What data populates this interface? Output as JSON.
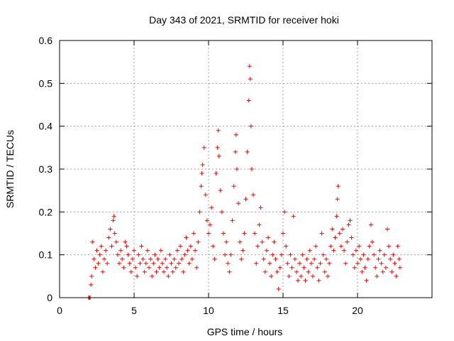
{
  "chart_data": {
    "type": "scatter",
    "title": "Day 343 of 2021, SRMTID for receiver hoki",
    "xlabel": "GPS time / hours",
    "ylabel": "SRMTID / TECUs",
    "xlim": [
      0,
      25
    ],
    "ylim": [
      0,
      0.6
    ],
    "xticks": [
      "0",
      "5",
      "10",
      "15",
      "20"
    ],
    "yticks": [
      "0",
      "0.1",
      "0.2",
      "0.3",
      "0.4",
      "0.5",
      "0.6"
    ],
    "grid": true,
    "marker": "+",
    "color": "#ff0000",
    "series": [
      {
        "name": "SRMTID",
        "points": [
          [
            1.95,
            0.0
          ],
          [
            2.0,
            0.0
          ],
          [
            2.05,
            0.0
          ],
          [
            2.1,
            0.03
          ],
          [
            2.15,
            0.05
          ],
          [
            2.2,
            0.13
          ],
          [
            2.3,
            0.09
          ],
          [
            2.4,
            0.07
          ],
          [
            2.5,
            0.11
          ],
          [
            2.6,
            0.08
          ],
          [
            2.7,
            0.1
          ],
          [
            2.8,
            0.12
          ],
          [
            2.9,
            0.06
          ],
          [
            3.0,
            0.09
          ],
          [
            3.1,
            0.11
          ],
          [
            3.2,
            0.08
          ],
          [
            3.3,
            0.14
          ],
          [
            3.4,
            0.16
          ],
          [
            3.5,
            0.12
          ],
          [
            3.6,
            0.18
          ],
          [
            3.65,
            0.19
          ],
          [
            3.7,
            0.15
          ],
          [
            3.8,
            0.13
          ],
          [
            3.9,
            0.1
          ],
          [
            4.0,
            0.08
          ],
          [
            4.1,
            0.11
          ],
          [
            4.2,
            0.09
          ],
          [
            4.3,
            0.07
          ],
          [
            4.4,
            0.13
          ],
          [
            4.5,
            0.12
          ],
          [
            4.6,
            0.1
          ],
          [
            4.7,
            0.08
          ],
          [
            4.8,
            0.06
          ],
          [
            4.9,
            0.09
          ],
          [
            5.0,
            0.11
          ],
          [
            5.1,
            0.07
          ],
          [
            5.2,
            0.05
          ],
          [
            5.3,
            0.1
          ],
          [
            5.4,
            0.08
          ],
          [
            5.5,
            0.12
          ],
          [
            5.6,
            0.09
          ],
          [
            5.7,
            0.06
          ],
          [
            5.8,
            0.08
          ],
          [
            5.9,
            0.11
          ],
          [
            6.0,
            0.07
          ],
          [
            6.1,
            0.09
          ],
          [
            6.2,
            0.05
          ],
          [
            6.3,
            0.08
          ],
          [
            6.4,
            0.1
          ],
          [
            6.5,
            0.06
          ],
          [
            6.6,
            0.09
          ],
          [
            6.7,
            0.07
          ],
          [
            6.8,
            0.11
          ],
          [
            6.9,
            0.08
          ],
          [
            7.0,
            0.06
          ],
          [
            7.1,
            0.09
          ],
          [
            7.2,
            0.07
          ],
          [
            7.3,
            0.05
          ],
          [
            7.4,
            0.1
          ],
          [
            7.5,
            0.08
          ],
          [
            7.6,
            0.06
          ],
          [
            7.7,
            0.09
          ],
          [
            7.8,
            0.07
          ],
          [
            7.9,
            0.11
          ],
          [
            8.0,
            0.08
          ],
          [
            8.1,
            0.12
          ],
          [
            8.2,
            0.09
          ],
          [
            8.3,
            0.06
          ],
          [
            8.4,
            0.1
          ],
          [
            8.5,
            0.14
          ],
          [
            8.6,
            0.11
          ],
          [
            8.7,
            0.08
          ],
          [
            8.8,
            0.12
          ],
          [
            8.9,
            0.09
          ],
          [
            9.0,
            0.15
          ],
          [
            9.1,
            0.11
          ],
          [
            9.2,
            0.07
          ],
          [
            9.3,
            0.13
          ],
          [
            9.4,
            0.2
          ],
          [
            9.5,
            0.26
          ],
          [
            9.55,
            0.29
          ],
          [
            9.6,
            0.31
          ],
          [
            9.7,
            0.35
          ],
          [
            9.8,
            0.24
          ],
          [
            9.9,
            0.18
          ],
          [
            10.0,
            0.15
          ],
          [
            10.1,
            0.17
          ],
          [
            10.2,
            0.21
          ],
          [
            10.3,
            0.12
          ],
          [
            10.4,
            0.09
          ],
          [
            10.5,
            0.29
          ],
          [
            10.6,
            0.35
          ],
          [
            10.65,
            0.39
          ],
          [
            10.7,
            0.33
          ],
          [
            10.8,
            0.25
          ],
          [
            10.9,
            0.2
          ],
          [
            11.0,
            0.15
          ],
          [
            11.1,
            0.1
          ],
          [
            11.2,
            0.13
          ],
          [
            11.3,
            0.08
          ],
          [
            11.4,
            0.06
          ],
          [
            11.5,
            0.1
          ],
          [
            11.6,
            0.18
          ],
          [
            11.7,
            0.26
          ],
          [
            11.8,
            0.34
          ],
          [
            11.85,
            0.38
          ],
          [
            11.9,
            0.3
          ],
          [
            12.0,
            0.22
          ],
          [
            12.1,
            0.13
          ],
          [
            12.2,
            0.09
          ],
          [
            12.3,
            0.11
          ],
          [
            12.4,
            0.15
          ],
          [
            12.5,
            0.23
          ],
          [
            12.6,
            0.34
          ],
          [
            12.7,
            0.46
          ],
          [
            12.75,
            0.54
          ],
          [
            12.8,
            0.51
          ],
          [
            12.85,
            0.4
          ],
          [
            12.9,
            0.3
          ],
          [
            13.0,
            0.24
          ],
          [
            13.1,
            0.15
          ],
          [
            13.2,
            0.08
          ],
          [
            13.3,
            0.12
          ],
          [
            13.4,
            0.17
          ],
          [
            13.5,
            0.21
          ],
          [
            13.6,
            0.13
          ],
          [
            13.7,
            0.09
          ],
          [
            13.8,
            0.06
          ],
          [
            13.9,
            0.11
          ],
          [
            14.0,
            0.14
          ],
          [
            14.1,
            0.08
          ],
          [
            14.2,
            0.05
          ],
          [
            14.3,
            0.1
          ],
          [
            14.4,
            0.13
          ],
          [
            14.5,
            0.09
          ],
          [
            14.6,
            0.06
          ],
          [
            14.7,
            0.02
          ],
          [
            14.8,
            0.07
          ],
          [
            14.9,
            0.1
          ],
          [
            15.0,
            0.15
          ],
          [
            15.1,
            0.2
          ],
          [
            15.2,
            0.12
          ],
          [
            15.3,
            0.08
          ],
          [
            15.4,
            0.05
          ],
          [
            15.5,
            0.1
          ],
          [
            15.6,
            0.07
          ],
          [
            15.7,
            0.19
          ],
          [
            15.8,
            0.09
          ],
          [
            15.9,
            0.06
          ],
          [
            16.0,
            0.04
          ],
          [
            16.1,
            0.08
          ],
          [
            16.2,
            0.05
          ],
          [
            16.3,
            0.1
          ],
          [
            16.4,
            0.07
          ],
          [
            16.5,
            0.04
          ],
          [
            16.6,
            0.09
          ],
          [
            16.7,
            0.06
          ],
          [
            16.8,
            0.11
          ],
          [
            16.9,
            0.08
          ],
          [
            17.0,
            0.05
          ],
          [
            17.1,
            0.09
          ],
          [
            17.2,
            0.12
          ],
          [
            17.3,
            0.07
          ],
          [
            17.4,
            0.04
          ],
          [
            17.5,
            0.08
          ],
          [
            17.6,
            0.15
          ],
          [
            17.7,
            0.1
          ],
          [
            17.8,
            0.06
          ],
          [
            17.9,
            0.09
          ],
          [
            18.0,
            0.05
          ],
          [
            18.1,
            0.08
          ],
          [
            18.2,
            0.12
          ],
          [
            18.3,
            0.16
          ],
          [
            18.4,
            0.11
          ],
          [
            18.5,
            0.14
          ],
          [
            18.6,
            0.19
          ],
          [
            18.65,
            0.23
          ],
          [
            18.7,
            0.26
          ],
          [
            18.8,
            0.15
          ],
          [
            18.9,
            0.12
          ],
          [
            19.0,
            0.16
          ],
          [
            19.1,
            0.11
          ],
          [
            19.2,
            0.08
          ],
          [
            19.3,
            0.13
          ],
          [
            19.4,
            0.17
          ],
          [
            19.5,
            0.18
          ],
          [
            19.6,
            0.14
          ],
          [
            19.7,
            0.1
          ],
          [
            19.8,
            0.07
          ],
          [
            19.9,
            0.11
          ],
          [
            20.0,
            0.08
          ],
          [
            20.1,
            0.12
          ],
          [
            20.2,
            0.09
          ],
          [
            20.3,
            0.06
          ],
          [
            20.4,
            0.1
          ],
          [
            20.5,
            0.07
          ],
          [
            20.6,
            0.04
          ],
          [
            20.7,
            0.09
          ],
          [
            20.8,
            0.12
          ],
          [
            20.9,
            0.17
          ],
          [
            21.0,
            0.13
          ],
          [
            21.1,
            0.1
          ],
          [
            21.2,
            0.07
          ],
          [
            21.3,
            0.05
          ],
          [
            21.4,
            0.09
          ],
          [
            21.5,
            0.11
          ],
          [
            21.6,
            0.08
          ],
          [
            21.7,
            0.06
          ],
          [
            21.8,
            0.1
          ],
          [
            21.9,
            0.07
          ],
          [
            22.0,
            0.16
          ],
          [
            22.1,
            0.12
          ],
          [
            22.2,
            0.09
          ],
          [
            22.3,
            0.06
          ],
          [
            22.4,
            0.1
          ],
          [
            22.5,
            0.08
          ],
          [
            22.6,
            0.05
          ],
          [
            22.7,
            0.12
          ],
          [
            22.8,
            0.09
          ],
          [
            22.85,
            0.07
          ]
        ]
      }
    ]
  }
}
